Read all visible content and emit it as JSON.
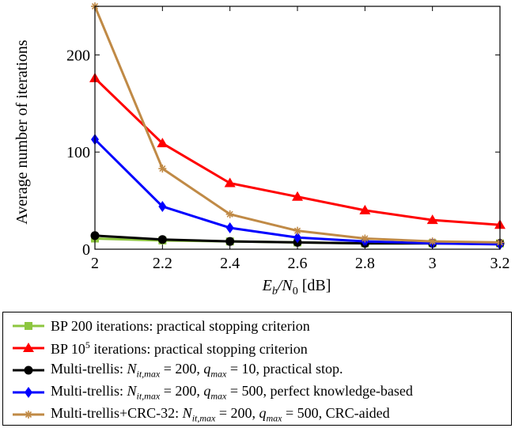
{
  "chart_data": {
    "type": "line",
    "xlabel": "E_b/N_0 [dB]",
    "xlabel_parts": {
      "e": "E",
      "b": "b",
      "slash": "/N",
      "zero": "0",
      "unit": " [dB]"
    },
    "ylabel": "Average number of iterations",
    "x": [
      2,
      2.2,
      2.4,
      2.6,
      2.8,
      3,
      3.2
    ],
    "x_tick_labels": [
      "2",
      "2.2",
      "2.4",
      "2.6",
      "2.8",
      "3",
      "3.2"
    ],
    "y_ticks": [
      0,
      100,
      200
    ],
    "y_tick_labels": [
      "0",
      "100",
      "200"
    ],
    "xlim": [
      2,
      3.2
    ],
    "ylim": [
      0,
      250
    ],
    "grid": false,
    "legend_position": "below",
    "series": [
      {
        "name": "BP 200 iterations: practical stopping criterion",
        "color": "#8dc63f",
        "marker": "square",
        "values": [
          11,
          9,
          8,
          7,
          6,
          6,
          6
        ]
      },
      {
        "name": "BP 10^5 iterations: practical stopping criterion",
        "color": "#ff0000",
        "marker": "triangle",
        "values": [
          176,
          109,
          68,
          54,
          40,
          30,
          25
        ]
      },
      {
        "name": "Multi-trellis: N_it,max = 200, q_max = 10, practical stop.",
        "color": "#000000",
        "marker": "circle",
        "values": [
          14,
          10,
          8,
          7,
          6,
          6,
          6
        ]
      },
      {
        "name": "Multi-trellis: N_it,max = 200, q_max = 500, perfect knowledge-based",
        "color": "#0000ff",
        "marker": "diamond",
        "values": [
          113,
          44,
          22,
          12,
          8,
          6,
          5
        ]
      },
      {
        "name": "Multi-trellis+CRC-32: N_it,max = 200, q_max = 500, CRC-aided",
        "color": "#c08a46",
        "marker": "star",
        "values": [
          250,
          83,
          36,
          19,
          11,
          8,
          7
        ]
      }
    ]
  },
  "legend": {
    "entries": [
      {
        "pre": "BP 200 iterations: practical stopping criterion"
      },
      {
        "pre": "BP 10",
        "sup": "5",
        "post": " iterations: practical stopping criterion"
      },
      {
        "pre": "Multi-trellis: ",
        "n": "N",
        "nsub": "it,max",
        "mid": " = 200, ",
        "q": "q",
        "qsub": "max",
        "post": " = 10, practical stop."
      },
      {
        "pre": "Multi-trellis: ",
        "n": "N",
        "nsub": "it,max",
        "mid": " = 200, ",
        "q": "q",
        "qsub": "max",
        "post": " = 500, perfect knowledge-based"
      },
      {
        "pre": "Multi-trellis+CRC-32: ",
        "n": "N",
        "nsub": "it,max",
        "mid": " = 200, ",
        "q": "q",
        "qsub": "max",
        "post": " = 500, CRC-aided"
      }
    ]
  }
}
